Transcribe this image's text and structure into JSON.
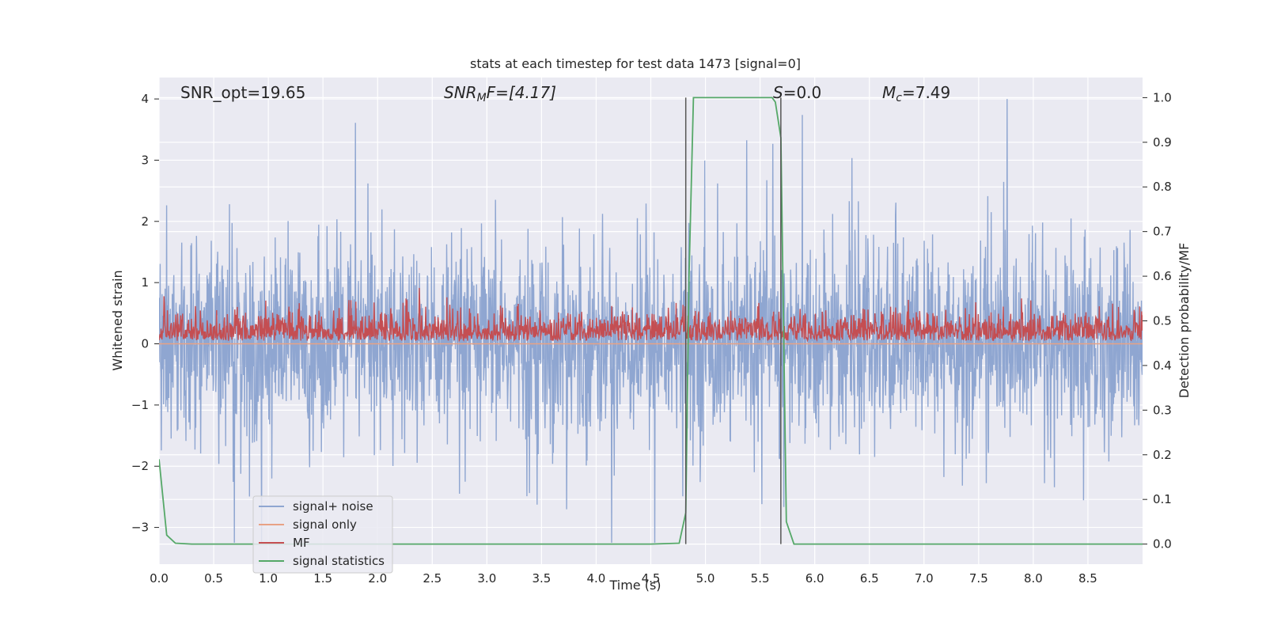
{
  "chart_data": {
    "type": "line",
    "title": "stats at each timestep for test data 1473 [signal=0]",
    "xlabel": "Time (s)",
    "ylabel_left": "Whitened strain",
    "ylabel_right": "Detection probability/MF",
    "xlim": [
      0.0,
      9.0
    ],
    "ylim_left": [
      -3.6,
      4.35
    ],
    "ylim_right": [
      -0.045,
      1.045
    ],
    "x_ticks": [
      "0.0",
      "0.5",
      "1.0",
      "1.5",
      "2.0",
      "2.5",
      "3.0",
      "3.5",
      "4.0",
      "4.5",
      "5.0",
      "5.5",
      "6.0",
      "6.5",
      "7.0",
      "7.5",
      "8.0",
      "8.5"
    ],
    "y_left_ticks": [
      "−3",
      "−2",
      "−1",
      "0",
      "1",
      "2",
      "3",
      "4"
    ],
    "y_right_ticks": [
      "0.0",
      "0.1",
      "0.2",
      "0.3",
      "0.4",
      "0.5",
      "0.6",
      "0.7",
      "0.8",
      "0.9",
      "1.0"
    ],
    "grid": true,
    "background": "#eaeaf2",
    "annotations": {
      "snr_opt": "SNR_opt=19.65",
      "snr_mf_main": "SNR",
      "snr_mf_sub": "M",
      "snr_mf_rest": "F=[4.17]",
      "s_main": "S",
      "s_rest": "=0.0",
      "mc_main": "M",
      "mc_sub": "c",
      "mc_rest": "=7.49"
    },
    "vertical_lines_s": [
      4.82,
      5.69
    ],
    "legend": {
      "position": "lower-left",
      "entries": [
        {
          "label": "signal+ noise",
          "color": "#8fa6d1"
        },
        {
          "label": "signal only",
          "color": "#e8a285"
        },
        {
          "label": "MF",
          "color": "#c44e52"
        },
        {
          "label": "signal statistics",
          "color": "#55a868"
        }
      ]
    },
    "series": [
      {
        "name": "signal+ noise",
        "color": "#8fa6d1",
        "approx_amplitude": 1.0,
        "approx_peak_max": 4.0,
        "approx_peak_min": -3.25
      },
      {
        "name": "signal only",
        "color": "#e8a285",
        "approx_value": 0.0
      },
      {
        "name": "MF",
        "color": "#c44e52",
        "approx_baseline": 0.05,
        "approx_peak_max": 1.0
      },
      {
        "name": "signal statistics",
        "color": "#55a868",
        "x": [
          0.0,
          0.07,
          0.15,
          0.3,
          1.0,
          2.0,
          3.0,
          4.0,
          4.5,
          4.76,
          4.82,
          4.85,
          4.89,
          5.0,
          5.5,
          5.61,
          5.64,
          5.69,
          5.74,
          5.81,
          6.0,
          7.0,
          8.0,
          9.0
        ],
        "values": [
          0.19,
          0.02,
          0.002,
          0.0,
          0.0,
          0.0,
          0.0,
          0.0,
          0.0,
          0.002,
          0.07,
          0.6,
          1.0,
          1.0,
          1.0,
          1.0,
          0.99,
          0.91,
          0.05,
          0.0,
          0.0,
          0.0,
          0.0,
          0.0
        ]
      }
    ]
  }
}
